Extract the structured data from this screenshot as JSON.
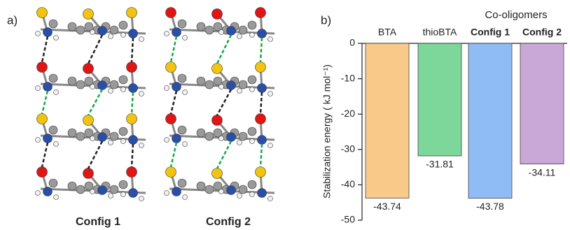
{
  "panel_a": {
    "label": "a)",
    "configs": [
      "Config 1",
      "Config 2"
    ]
  },
  "chart_data": {
    "type": "bar",
    "panel_label": "b)",
    "group_label": "Co-oligomers",
    "y_label": "Stabilization energy ( kJ mol⁻¹)",
    "categories": [
      "BTA",
      "thioBTA",
      "Config 1",
      "Config 2"
    ],
    "values": [
      -43.74,
      -31.81,
      -43.78,
      -34.11
    ],
    "colors": [
      "#f9c98a",
      "#7dd69a",
      "#8fbcf5",
      "#c9a8d8"
    ],
    "ylim": [
      -50,
      0
    ],
    "yticks": [
      0,
      -10,
      -20,
      -30,
      -40,
      -50
    ]
  }
}
